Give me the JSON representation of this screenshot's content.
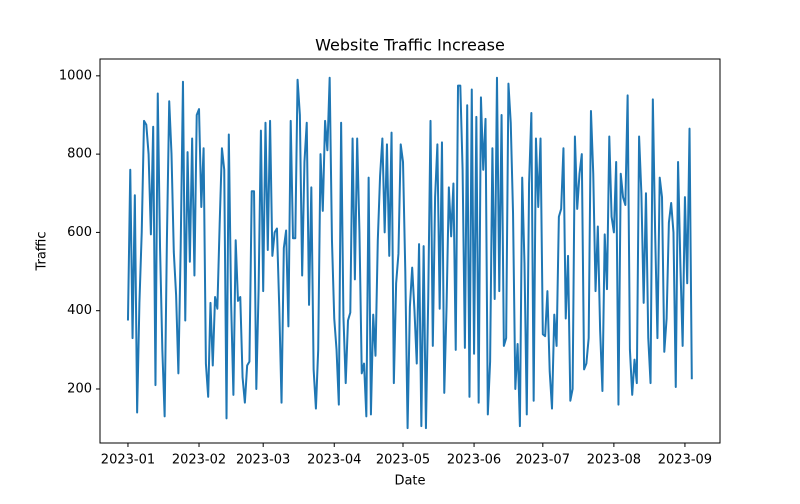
{
  "chart_data": {
    "type": "line",
    "title": "Website Traffic Increase",
    "x_label": "Date",
    "y_label": "Traffic",
    "series": [
      {
        "name": "Traffic",
        "color": "#1f77b4",
        "values": [
          375,
          760,
          330,
          695,
          140,
          420,
          600,
          885,
          875,
          800,
          595,
          870,
          210,
          955,
          560,
          300,
          130,
          585,
          935,
          800,
          550,
          440,
          240,
          560,
          985,
          375,
          805,
          525,
          840,
          490,
          900,
          915,
          665,
          815,
          265,
          180,
          420,
          260,
          435,
          405,
          620,
          815,
          760,
          125,
          850,
          420,
          185,
          580,
          425,
          435,
          230,
          165,
          260,
          270,
          705,
          705,
          200,
          455,
          860,
          450,
          880,
          555,
          885,
          540,
          600,
          610,
          410,
          165,
          560,
          605,
          360,
          885,
          585,
          585,
          990,
          900,
          490,
          780,
          880,
          415,
          715,
          250,
          150,
          300,
          800,
          655,
          885,
          810,
          995,
          580,
          380,
          300,
          160,
          880,
          385,
          215,
          375,
          395,
          840,
          480,
          840,
          600,
          240,
          265,
          130,
          740,
          135,
          390,
          285,
          580,
          745,
          840,
          600,
          825,
          540,
          855,
          215,
          470,
          545,
          825,
          780,
          500,
          100,
          410,
          510,
          400,
          265,
          570,
          105,
          565,
          100,
          430,
          885,
          310,
          690,
          825,
          405,
          830,
          190,
          410,
          715,
          590,
          725,
          300,
          975,
          975,
          760,
          305,
          925,
          180,
          965,
          290,
          895,
          165,
          945,
          760,
          890,
          135,
          270,
          815,
          430,
          995,
          450,
          900,
          310,
          330,
          980,
          880,
          650,
          200,
          315,
          105,
          740,
          520,
          135,
          725,
          905,
          170,
          840,
          665,
          840,
          340,
          335,
          450,
          245,
          150,
          390,
          310,
          640,
          660,
          815,
          380,
          540,
          170,
          200,
          845,
          660,
          750,
          800,
          250,
          265,
          330,
          910,
          750,
          450,
          615,
          350,
          195,
          595,
          455,
          845,
          640,
          600,
          780,
          160,
          750,
          690,
          670,
          950,
          300,
          185,
          275,
          215,
          845,
          700,
          420,
          700,
          330,
          215,
          940,
          600,
          330,
          740,
          690,
          295,
          380,
          625,
          675,
          600,
          205,
          780,
          520,
          310,
          690,
          470,
          865,
          225
        ]
      }
    ],
    "xlim": [
      -12.2,
      258.3
    ],
    "xticks": [
      {
        "value": 0,
        "label": "2023-01"
      },
      {
        "value": 31,
        "label": "2023-02"
      },
      {
        "value": 59,
        "label": "2023-03"
      },
      {
        "value": 90,
        "label": "2023-04"
      },
      {
        "value": 120,
        "label": "2023-05"
      },
      {
        "value": 151,
        "label": "2023-06"
      },
      {
        "value": 181,
        "label": "2023-07"
      },
      {
        "value": 212,
        "label": "2023-08"
      },
      {
        "value": 243,
        "label": "2023-09"
      }
    ],
    "ylim": [
      62,
      1043
    ],
    "yticks": [
      200,
      400,
      600,
      800,
      1000
    ],
    "grid": false
  }
}
